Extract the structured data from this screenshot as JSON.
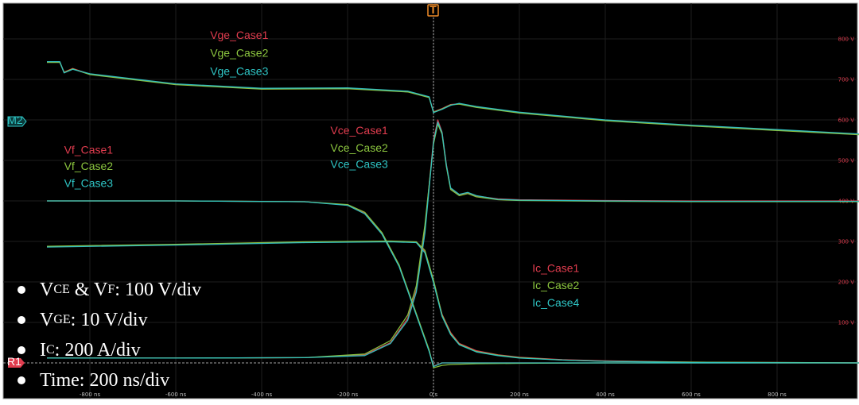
{
  "chart_data": {
    "type": "line",
    "xlim": [
      -900,
      1000
    ],
    "ylim": [
      0,
      860
    ],
    "x_tick_labels": [
      {
        "x": -800,
        "label": "-800 ns"
      },
      {
        "x": -600,
        "label": "-600 ns"
      },
      {
        "x": -400,
        "label": "-400 ns"
      },
      {
        "x": -200,
        "label": "-200 ns"
      },
      {
        "x": 0,
        "label": "0 s"
      },
      {
        "x": 200,
        "label": "200 ns"
      },
      {
        "x": 400,
        "label": "400 ns"
      },
      {
        "x": 600,
        "label": "600 ns"
      },
      {
        "x": 800,
        "label": "800 ns"
      }
    ],
    "y_tick_labels": [
      {
        "y": 100,
        "label": "100 V"
      },
      {
        "y": 200,
        "label": "200 V"
      },
      {
        "y": 300,
        "label": "300 V"
      },
      {
        "y": 400,
        "label": "400 V"
      },
      {
        "y": 500,
        "label": "500 V"
      },
      {
        "y": 600,
        "label": "600 V"
      },
      {
        "y": 700,
        "label": "700 V"
      },
      {
        "y": 800,
        "label": "800 V"
      }
    ],
    "markers": {
      "trigger": "T",
      "m2": "M2",
      "r1": "R1"
    },
    "series": [
      {
        "name": "Vge_Case1",
        "color": "#e03c4e",
        "x": [
          -900,
          -870,
          -860,
          -840,
          -800,
          -600,
          -400,
          -200,
          -60,
          -10,
          0,
          20,
          40,
          60,
          100,
          200,
          400,
          600,
          800,
          1000
        ],
        "y": [
          743,
          743,
          718,
          727,
          713,
          688,
          677,
          678,
          670,
          656,
          620,
          628,
          638,
          640,
          632,
          618,
          599,
          586,
          575,
          564
        ]
      },
      {
        "name": "Vge_Case2",
        "color": "#8cc63f",
        "x": [
          -900,
          -870,
          -860,
          -840,
          -800,
          -600,
          -400,
          -200,
          -60,
          -10,
          0,
          20,
          40,
          60,
          100,
          200,
          400,
          600,
          800,
          1000
        ],
        "y": [
          742,
          742,
          717,
          726,
          712,
          687,
          676,
          677,
          669,
          655,
          619,
          627,
          637,
          639,
          631,
          617,
          598,
          585,
          574,
          563
        ]
      },
      {
        "name": "Vge_Case3",
        "color": "#2ec4c4",
        "x": [
          -900,
          -870,
          -860,
          -840,
          -800,
          -600,
          -400,
          -200,
          -60,
          -10,
          0,
          20,
          40,
          60,
          100,
          200,
          400,
          600,
          800,
          1000
        ],
        "y": [
          744,
          744,
          716,
          725,
          714,
          689,
          678,
          679,
          671,
          657,
          618,
          626,
          636,
          641,
          633,
          619,
          600,
          587,
          576,
          565
        ]
      },
      {
        "name": "Vce_Case1",
        "color": "#e03c4e",
        "x": [
          -900,
          -600,
          -300,
          -160,
          -100,
          -60,
          -40,
          -20,
          0,
          10,
          20,
          30,
          40,
          60,
          80,
          100,
          150,
          200,
          400,
          600,
          800,
          1000
        ],
        "y": [
          12,
          12,
          13,
          20,
          50,
          110,
          180,
          330,
          550,
          600,
          570,
          490,
          430,
          415,
          420,
          412,
          405,
          403,
          401,
          400,
          400,
          400
        ]
      },
      {
        "name": "Vce_Case2",
        "color": "#8cc63f",
        "x": [
          -900,
          -600,
          -300,
          -160,
          -100,
          -60,
          -40,
          -20,
          0,
          10,
          20,
          30,
          40,
          60,
          80,
          100,
          150,
          200,
          400,
          600,
          800,
          1000
        ],
        "y": [
          12,
          12,
          13,
          22,
          55,
          118,
          190,
          340,
          540,
          590,
          565,
          485,
          428,
          413,
          418,
          410,
          403,
          401,
          399,
          398,
          398,
          398
        ]
      },
      {
        "name": "Vce_Case3",
        "color": "#2ec4c4",
        "x": [
          -900,
          -600,
          -300,
          -160,
          -100,
          -60,
          -40,
          -20,
          0,
          10,
          20,
          30,
          40,
          60,
          80,
          100,
          150,
          200,
          400,
          600,
          800,
          1000
        ],
        "y": [
          12,
          12,
          13,
          18,
          48,
          105,
          175,
          320,
          545,
          595,
          568,
          488,
          432,
          416,
          421,
          413,
          404,
          402,
          400,
          399,
          399,
          399
        ]
      },
      {
        "name": "Vf_Case1",
        "color": "#e03c4e",
        "x": [
          -900,
          -600,
          -300,
          -200,
          -160,
          -120,
          -80,
          -40,
          -10,
          0,
          20,
          1000
        ],
        "y": [
          400,
          400,
          398,
          390,
          370,
          320,
          240,
          120,
          30,
          -8,
          0,
          0
        ]
      },
      {
        "name": "Vf_Case2",
        "color": "#8cc63f",
        "x": [
          -900,
          -600,
          -300,
          -200,
          -160,
          -120,
          -80,
          -40,
          -10,
          0,
          20,
          40,
          100,
          200,
          400,
          1000
        ],
        "y": [
          400,
          400,
          398,
          391,
          372,
          322,
          242,
          122,
          32,
          -12,
          -6,
          -4,
          -2,
          -1,
          0,
          0
        ]
      },
      {
        "name": "Vf_Case3",
        "color": "#2ec4c4",
        "x": [
          -900,
          -600,
          -300,
          -200,
          -160,
          -120,
          -80,
          -40,
          -10,
          0,
          20,
          1000
        ],
        "y": [
          400,
          400,
          398,
          389,
          368,
          318,
          238,
          118,
          28,
          -9,
          0,
          0
        ]
      },
      {
        "name": "Ic_Case1",
        "color": "#e03c4e",
        "x": [
          -900,
          -600,
          -300,
          -100,
          -40,
          -20,
          0,
          20,
          40,
          60,
          100,
          150,
          200,
          300,
          400,
          600,
          1000
        ],
        "y": [
          287,
          292,
          298,
          300,
          298,
          275,
          200,
          120,
          75,
          48,
          30,
          20,
          14,
          8,
          5,
          2,
          0
        ]
      },
      {
        "name": "Ic_Case2",
        "color": "#8cc63f",
        "x": [
          -900,
          -600,
          -300,
          -100,
          -40,
          -20,
          0,
          20,
          40,
          60,
          100,
          150,
          200,
          300,
          400,
          600,
          1000
        ],
        "y": [
          288,
          293,
          299,
          301,
          299,
          278,
          205,
          118,
          72,
          46,
          28,
          19,
          13,
          7,
          4,
          2,
          0
        ]
      },
      {
        "name": "Ic_Case4",
        "color": "#2ec4c4",
        "x": [
          -900,
          -600,
          -300,
          -100,
          -40,
          -20,
          0,
          20,
          40,
          60,
          100,
          150,
          200,
          300,
          400,
          600,
          1000
        ],
        "y": [
          286,
          291,
          297,
          299,
          297,
          272,
          198,
          115,
          70,
          45,
          27,
          18,
          12,
          7,
          4,
          1,
          0
        ]
      }
    ],
    "labels": [
      {
        "text": "Vge_Case1",
        "color": "#e03c4e",
        "x": -520,
        "y": 800
      },
      {
        "text": "Vge_Case2",
        "color": "#8cc63f",
        "x": -520,
        "y": 756
      },
      {
        "text": "Vge_Case3",
        "color": "#2ec4c4",
        "x": -520,
        "y": 711
      },
      {
        "text": "Vce_Case1",
        "color": "#e03c4e",
        "x": -240,
        "y": 565
      },
      {
        "text": "Vce_Case2",
        "color": "#8cc63f",
        "x": -240,
        "y": 522
      },
      {
        "text": "Vce_Case3",
        "color": "#2ec4c4",
        "x": -240,
        "y": 481
      },
      {
        "text": "Vf_Case1",
        "color": "#e03c4e",
        "x": -860,
        "y": 517
      },
      {
        "text": "Vf_Case2",
        "color": "#8cc63f",
        "x": -860,
        "y": 476
      },
      {
        "text": "Vf_Case3",
        "color": "#2ec4c4",
        "x": -860,
        "y": 434
      },
      {
        "text": "Ic_Case1",
        "color": "#e03c4e",
        "x": 230,
        "y": 225
      },
      {
        "text": "Ic_Case2",
        "color": "#8cc63f",
        "x": 230,
        "y": 182
      },
      {
        "text": "Ic_Case4",
        "color": "#2ec4c4",
        "x": 230,
        "y": 139
      }
    ]
  },
  "notes": {
    "vce_vf": {
      "v1": "V",
      "s1": "CE",
      "amp": " & V",
      "s2": "F",
      "rest": ": 100 V/div"
    },
    "vge": {
      "v": "V",
      "s": "GE",
      "rest": ": 10 V/div"
    },
    "ic": {
      "v": "I",
      "s": "C",
      "rest": ": 200 A/div"
    },
    "time": "Time: 200 ns/div"
  }
}
